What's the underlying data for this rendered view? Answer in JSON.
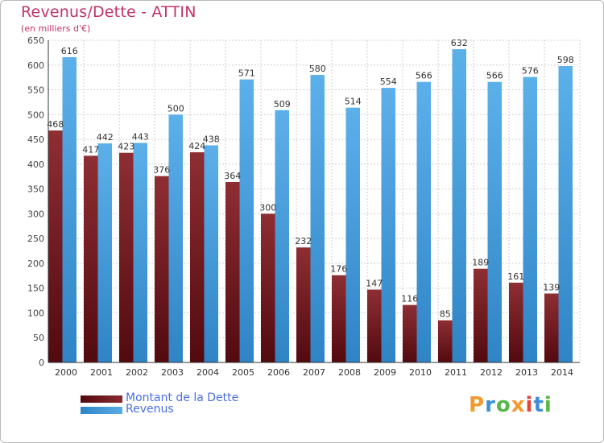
{
  "title": "Revenus/Dette - ATTIN",
  "subtitle": "(en milliers d'€)",
  "legend": {
    "debt_label": "Montant de la Dette",
    "revenue_label": "Revenus"
  },
  "logo": {
    "text": "Proxiti"
  },
  "colors": {
    "debt": "#8a2a2f",
    "debt_dark": "#520a0f",
    "revenue": "#5aade6",
    "revenue_dark": "#2f84c6",
    "title": "#c0336a",
    "legend_text": "#4a6fe3",
    "logo_letters": [
      "#f29a2e",
      "#3f8fd8",
      "#59b64a",
      "#f29a2e",
      "#e0463c",
      "#3f8fd8",
      "#59b64a"
    ]
  },
  "chart_data": {
    "type": "bar",
    "categories": [
      "2000",
      "2001",
      "2002",
      "2003",
      "2004",
      "2005",
      "2006",
      "2007",
      "2008",
      "2009",
      "2010",
      "2011",
      "2012",
      "2013",
      "2014"
    ],
    "series": [
      {
        "name": "Montant de la Dette",
        "values": [
          468,
          417,
          423,
          376,
          424,
          364,
          300,
          232,
          176,
          147,
          116,
          85,
          189,
          161,
          139
        ]
      },
      {
        "name": "Revenus",
        "values": [
          616,
          442,
          443,
          500,
          438,
          571,
          509,
          580,
          514,
          554,
          566,
          632,
          566,
          576,
          598
        ]
      }
    ],
    "ylim": [
      0,
      650
    ],
    "yticks": [
      0,
      50,
      100,
      150,
      200,
      250,
      300,
      350,
      400,
      450,
      500,
      550,
      600,
      650
    ],
    "grid": true,
    "legend_position": "bottom-left"
  }
}
